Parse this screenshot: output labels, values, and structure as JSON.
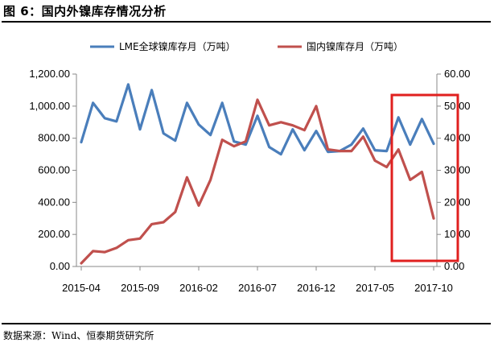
{
  "header": {
    "title": "图 6：国内外镍库存情况分析"
  },
  "footer": {
    "source": "数据来源：Wind、恒泰期货研究所"
  },
  "chart_data": {
    "type": "line",
    "legend_placement": "top",
    "grid": false,
    "x_tick_labels": [
      "2015-04",
      "2015-09",
      "2016-02",
      "2016-07",
      "2016-12",
      "2017-05",
      "2017-10"
    ],
    "left_axis": {
      "range": [
        0,
        1200
      ],
      "ticks": [
        "0.00",
        "200.00",
        "400.00",
        "600.00",
        "800.00",
        "1,000.00",
        "1,200.00"
      ]
    },
    "right_axis": {
      "range": [
        0,
        60
      ],
      "ticks": [
        "0.00",
        "10.00",
        "20.00",
        "30.00",
        "40.00",
        "50.00",
        "60.00"
      ]
    },
    "series": [
      {
        "name": "LME全球镍库存月（万吨）",
        "axis": "left",
        "color": "#4a7ebb",
        "values": [
          775,
          1020,
          925,
          905,
          1135,
          855,
          1100,
          830,
          785,
          1020,
          885,
          820,
          1020,
          780,
          760,
          940,
          745,
          700,
          855,
          725,
          845,
          715,
          720,
          760,
          860,
          725,
          720,
          930,
          760,
          920,
          765
        ]
      },
      {
        "name": "国内镍库存月（万吨）",
        "axis": "right",
        "color": "#c0504d",
        "values": [
          1,
          4.8,
          4.5,
          5.8,
          8.2,
          8.7,
          13.2,
          13.8,
          17,
          27.8,
          19,
          27,
          39.5,
          37.5,
          39,
          52,
          44,
          45,
          44,
          42.5,
          50,
          36.5,
          36,
          36,
          40.5,
          33,
          31,
          36.5,
          27,
          29.5,
          15
        ]
      }
    ],
    "annotations": [
      {
        "type": "highlight-box",
        "color": "#e0201f"
      }
    ]
  }
}
